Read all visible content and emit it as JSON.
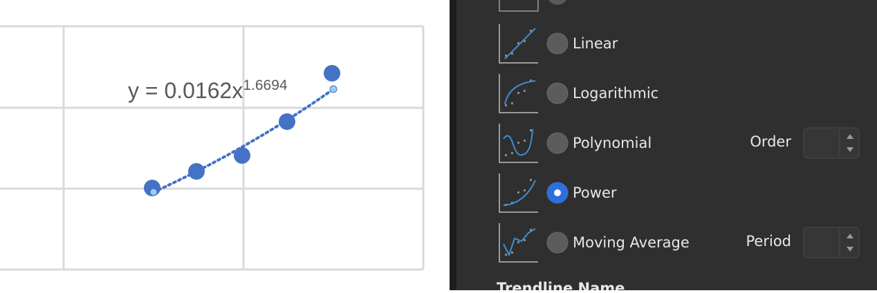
{
  "chart_preview": {
    "equation": {
      "base": "y = 0.0162x",
      "exponent": "1.6694"
    }
  },
  "trendline_options": [
    {
      "label": "Linear",
      "selected": false
    },
    {
      "label": "Logarithmic",
      "selected": false
    },
    {
      "label": "Polynomial",
      "selected": false,
      "field": "Order"
    },
    {
      "label": "Power",
      "selected": true
    },
    {
      "label": "Moving Average",
      "selected": false,
      "field": "Period"
    }
  ],
  "section_title": "Trendline Name"
}
